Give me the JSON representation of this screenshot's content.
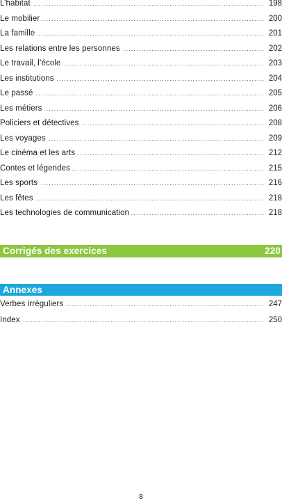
{
  "entries": [
    {
      "label": "L’habitat",
      "page": "198"
    },
    {
      "label": "Le mobilier",
      "page": "200"
    },
    {
      "label": "La famille",
      "page": "201"
    },
    {
      "label": "Les relations entre les personnes",
      "page": "202"
    },
    {
      "label": "Le travail, l’école",
      "page": "203"
    },
    {
      "label": "Les institutions",
      "page": "204"
    },
    {
      "label": "Le passé",
      "page": "205"
    },
    {
      "label": "Les métiers",
      "page": "206"
    },
    {
      "label": "Policiers et détectives",
      "page": "208"
    },
    {
      "label": "Les voyages",
      "page": "209"
    },
    {
      "label": "Le cinéma et les arts",
      "page": "212"
    },
    {
      "label": "Contes et légendes",
      "page": "215"
    },
    {
      "label": "Les sports",
      "page": "216"
    },
    {
      "label": "Les fêtes",
      "page": "218"
    },
    {
      "label": "Les technologies de communication",
      "page": "218"
    }
  ],
  "corriges": {
    "title": "Corrigés des exercices",
    "page": "220",
    "color": "#8dc63f"
  },
  "annexes": {
    "title": "Annexes",
    "color": "#1ba8dc",
    "entries": [
      {
        "label": "Verbes irréguliers",
        "page": "247"
      },
      {
        "label": "Index",
        "page": "250"
      }
    ]
  },
  "footer": {
    "page_number": "8"
  }
}
